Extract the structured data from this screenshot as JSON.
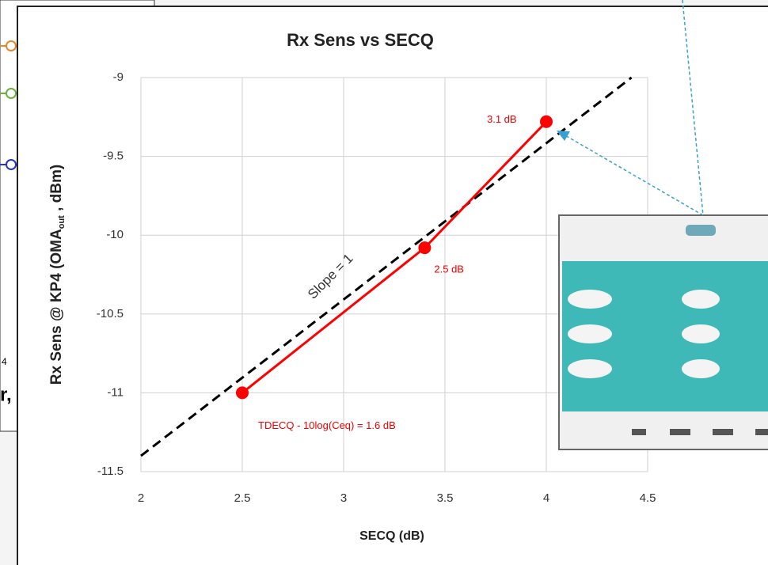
{
  "chart_data": {
    "type": "line",
    "title": "Rx Sens vs SECQ",
    "x_label": "SECQ (dB)",
    "y_label": {
      "main": "Rx Sens @ KP4 (OMA",
      "sub": "out",
      "tail": " , dBm)"
    },
    "series": [
      {
        "color": "#ff0000",
        "x": [
          2.5,
          3.4,
          4.0
        ],
        "values": [
          -11.0,
          -10.08,
          -9.28
        ],
        "markers": true,
        "dashed": false
      },
      {
        "color": "#000000",
        "x": [
          2,
          4.42
        ],
        "values": [
          -11.4,
          -9
        ],
        "markers": false,
        "dashed": true
      }
    ],
    "annotations": [
      "3.1 dB",
      "2.5 dB",
      "TDECQ - 10log(Ceq) = 1.6 dB",
      "Slope = 1"
    ],
    "xlim": [
      2,
      4.5
    ],
    "xticks": [
      2,
      2.5,
      3,
      3.5,
      4,
      4.5
    ],
    "ylim": [
      -11.5,
      -9
    ],
    "yticks": [
      -9,
      -9.5,
      -10,
      -10.5,
      -11,
      -11.5
    ],
    "grid": true
  },
  "background_fragments": [
    "4",
    "r,"
  ]
}
